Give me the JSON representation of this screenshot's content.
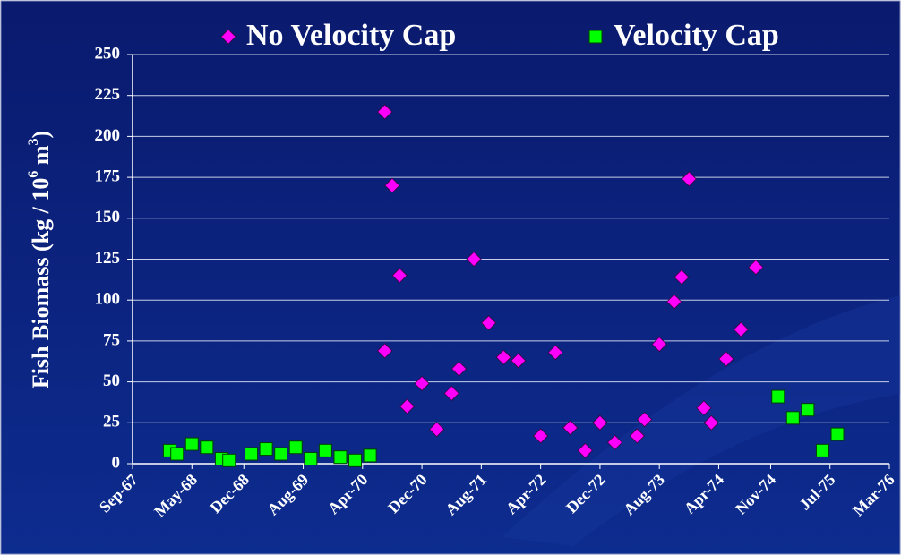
{
  "chart_data": {
    "type": "scatter",
    "y_label": [
      "Fish Biomass (kg / 10",
      "6",
      " m",
      "3",
      ")"
    ],
    "xlim": [
      "1967-09",
      "1976-03"
    ],
    "xticks": [
      {
        "value": "1967-09",
        "label": "Sep-67"
      },
      {
        "value": "1968-05",
        "label": "May-68"
      },
      {
        "value": "1968-12",
        "label": "Dec-68"
      },
      {
        "value": "1969-08",
        "label": "Aug-69"
      },
      {
        "value": "1970-04",
        "label": "Apr-70"
      },
      {
        "value": "1970-12",
        "label": "Dec-70"
      },
      {
        "value": "1971-08",
        "label": "Aug-71"
      },
      {
        "value": "1972-04",
        "label": "Apr-72"
      },
      {
        "value": "1972-12",
        "label": "Dec-72"
      },
      {
        "value": "1973-08",
        "label": "Aug-73"
      },
      {
        "value": "1974-04",
        "label": "Apr-74"
      },
      {
        "value": "1974-11",
        "label": "Nov-74"
      },
      {
        "value": "1975-07",
        "label": "Jul-75"
      },
      {
        "value": "1976-03",
        "label": "Mar-76"
      }
    ],
    "ylim": [
      0,
      250
    ],
    "yticks": [
      0,
      25,
      50,
      75,
      100,
      125,
      150,
      175,
      200,
      225,
      250
    ],
    "grid": true,
    "legend": "top",
    "series": [
      {
        "name": "No Velocity Cap",
        "color": "#ff00ff",
        "marker": "diamond",
        "x": [
          "1970-07",
          "1970-07",
          "1970-08",
          "1970-09",
          "1970-10",
          "1970-12",
          "1971-02",
          "1971-04",
          "1971-05",
          "1971-07",
          "1971-09",
          "1971-11",
          "1972-01",
          "1972-04",
          "1972-06",
          "1972-08",
          "1972-10",
          "1972-12",
          "1973-02",
          "1973-05",
          "1973-06",
          "1973-08",
          "1973-10",
          "1973-11",
          "1973-12",
          "1974-02",
          "1974-03",
          "1974-05",
          "1974-07",
          "1974-09"
        ],
        "values": [
          69,
          215,
          170,
          115,
          35,
          49,
          21,
          43,
          58,
          125,
          86,
          65,
          63,
          17,
          68,
          22,
          8,
          25,
          13,
          17,
          27,
          73,
          99,
          114,
          174,
          34,
          25,
          64,
          82,
          120
        ]
      },
      {
        "name": "Velocity Cap",
        "color": "#00ff00",
        "marker": "square",
        "x": [
          "1968-02",
          "1968-03",
          "1968-05",
          "1968-07",
          "1968-09",
          "1968-10",
          "1969-01",
          "1969-03",
          "1969-05",
          "1969-07",
          "1969-09",
          "1969-11",
          "1970-01",
          "1970-03",
          "1970-05",
          "1974-12",
          "1975-02",
          "1975-04",
          "1975-06",
          "1975-08"
        ],
        "values": [
          8,
          6,
          12,
          10,
          3,
          2,
          6,
          9,
          6,
          10,
          3,
          8,
          4,
          2,
          5,
          41,
          28,
          33,
          8,
          18
        ]
      }
    ]
  }
}
